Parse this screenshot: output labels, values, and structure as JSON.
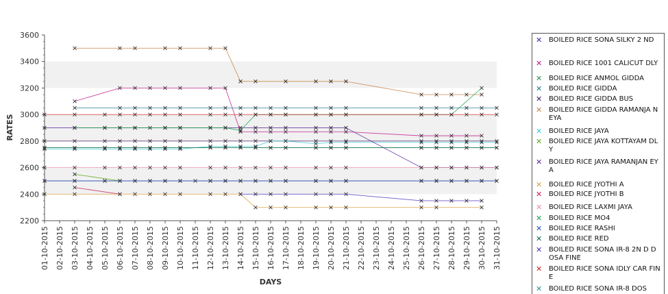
{
  "chart_data": {
    "type": "line",
    "title": "",
    "xlabel": "DAYS",
    "ylabel": "RATES",
    "ylim": [
      2200,
      3600
    ],
    "yticks": [
      2200,
      2400,
      2600,
      2800,
      3000,
      3200,
      3400,
      3600
    ],
    "grid": "alternating horizontal bands",
    "legend_position": "right",
    "categories": [
      "01-10-2015",
      "02-10-2015",
      "03-10-2015",
      "04-10-2015",
      "05-10-2015",
      "06-10-2015",
      "07-10-2015",
      "08-10-2015",
      "09-10-2015",
      "10-10-2015",
      "11-10-2015",
      "12-10-2015",
      "13-10-2015",
      "14-10-2015",
      "15-10-2015",
      "16-10-2015",
      "17-10-2015",
      "18-10-2015",
      "19-10-2015",
      "20-10-2015",
      "21-10-2015",
      "22-10-2015",
      "23-10-2015",
      "24-10-2015",
      "25-10-2015",
      "26-10-2015",
      "27-10-2015",
      "28-10-2015",
      "29-10-2015",
      "30-10-2015",
      "31-10-2015"
    ],
    "series": [
      {
        "name": "BOILED RICE SONA SILKY 2 ND",
        "color": "#2a2fa8",
        "values": [
          2500,
          null,
          2500,
          null,
          2500,
          2500,
          2500,
          2500,
          2500,
          2500,
          2500,
          2500,
          2500,
          2500,
          2500,
          2500,
          2500,
          null,
          2500,
          2500,
          2500,
          null,
          null,
          null,
          null,
          2500,
          2500,
          2500,
          2500,
          2500,
          2500
        ]
      },
      {
        "name": "BOILED RICE 1001 CALICUT DLY",
        "color": "#c0168c",
        "values": [
          null,
          null,
          3100,
          null,
          null,
          3200,
          3200,
          3200,
          3200,
          3200,
          null,
          3200,
          3200,
          2870,
          2870,
          2870,
          2870,
          null,
          2870,
          2870,
          2870,
          null,
          null,
          null,
          null,
          2840,
          2840,
          2840,
          2840,
          2840,
          null
        ]
      },
      {
        "name": "BOILED RICE ANMOL GIDDA",
        "color": "#2e8b57",
        "values": [
          2750,
          null,
          2750,
          null,
          2750,
          2750,
          2750,
          2750,
          2750,
          2750,
          null,
          2750,
          2750,
          2750,
          2750,
          2750,
          2750,
          null,
          2750,
          2750,
          2750,
          null,
          null,
          null,
          null,
          2750,
          2750,
          2750,
          2750,
          2750,
          2750
        ]
      },
      {
        "name": "BOILED RICE GIDDA",
        "color": "#1f7a8c",
        "values": [
          null,
          null,
          3050,
          null,
          null,
          3050,
          3050,
          3050,
          3050,
          3050,
          null,
          3050,
          3050,
          3050,
          3050,
          3050,
          3050,
          null,
          3050,
          3050,
          3050,
          null,
          null,
          null,
          null,
          3050,
          3050,
          3050,
          3050,
          3050,
          3050
        ]
      },
      {
        "name": "BOILED RICE GIDDA BUS",
        "color": "#3d1460",
        "values": [
          2800,
          null,
          2800,
          null,
          2800,
          2800,
          2800,
          2800,
          2800,
          2800,
          null,
          2800,
          2800,
          2800,
          2800,
          2800,
          2800,
          null,
          2800,
          2800,
          2800,
          null,
          null,
          null,
          null,
          2800,
          2800,
          2800,
          2800,
          2800,
          2800
        ]
      },
      {
        "name": "BOILED RICE GIDDA RAMANJANEYA",
        "color": "#c47e3c",
        "values": [
          null,
          null,
          3500,
          null,
          null,
          3500,
          3500,
          null,
          3500,
          3500,
          null,
          3500,
          3500,
          3250,
          3250,
          null,
          3250,
          null,
          3250,
          3250,
          3250,
          null,
          null,
          null,
          null,
          3150,
          3150,
          3150,
          3150,
          3150,
          null
        ]
      },
      {
        "name": "BOILED RICE JAYA",
        "color": "#31c7d6",
        "values": [
          2740,
          null,
          2740,
          null,
          2740,
          2740,
          2740,
          2740,
          2740,
          2740,
          null,
          2760,
          2760,
          2760,
          2760,
          2800,
          2800,
          null,
          2780,
          2790,
          2790,
          null,
          null,
          null,
          null,
          2790,
          2790,
          2790,
          2790,
          2790,
          2790
        ]
      },
      {
        "name": "BOILED RICE JAYA KOTTAYAM DLY",
        "color": "#5ca614",
        "values": [
          null,
          null,
          2550,
          null,
          null,
          2500,
          null,
          null,
          null,
          null,
          null,
          null,
          null,
          null,
          null,
          null,
          null,
          null,
          null,
          null,
          null,
          null,
          null,
          null,
          null,
          null,
          null,
          null,
          null,
          null,
          null
        ]
      },
      {
        "name": "BOILED RICE JAYA RAMANJANEYA",
        "color": "#5b2a9e",
        "values": [
          2900,
          null,
          2900,
          null,
          2900,
          2900,
          2900,
          2900,
          2900,
          2900,
          null,
          2900,
          2900,
          2900,
          2900,
          2900,
          2900,
          null,
          2900,
          2900,
          2900,
          null,
          null,
          null,
          null,
          2600,
          2600,
          2600,
          2600,
          2600,
          2600
        ]
      },
      {
        "name": "BOILED RICE JYOTHI A",
        "color": "#dd9a3a",
        "values": [
          2400,
          null,
          2400,
          null,
          null,
          2400,
          2400,
          2400,
          2400,
          2400,
          null,
          2400,
          2400,
          2400,
          2300,
          2300,
          2300,
          null,
          2300,
          2300,
          2300,
          null,
          null,
          null,
          null,
          2300,
          2300,
          null,
          null,
          2300,
          null
        ]
      },
      {
        "name": "BOILED RICE JYOTHI B",
        "color": "#c21d57",
        "values": [
          null,
          null,
          2450,
          null,
          null,
          2400,
          null,
          null,
          null,
          null,
          null,
          null,
          null,
          null,
          null,
          null,
          null,
          null,
          null,
          null,
          null,
          null,
          null,
          null,
          null,
          null,
          null,
          null,
          null,
          null,
          null
        ]
      },
      {
        "name": "BOILED RICE LAXMI JAYA",
        "color": "#e88aa0",
        "values": [
          2600,
          null,
          2600,
          null,
          2600,
          2600,
          2600,
          2600,
          2600,
          2600,
          null,
          2600,
          2600,
          2600,
          2600,
          2600,
          2600,
          null,
          2600,
          2600,
          2600,
          null,
          null,
          null,
          null,
          2600,
          2600,
          2600,
          2600,
          2600,
          2600
        ]
      },
      {
        "name": "BOILED RICE MO4",
        "color": "#17a34a",
        "values": [
          null,
          null,
          2900,
          null,
          2900,
          2900,
          2900,
          null,
          2900,
          2900,
          null,
          2900,
          2900,
          2880,
          3000,
          3000,
          3000,
          null,
          3000,
          3000,
          3000,
          null,
          null,
          null,
          null,
          3000,
          3000,
          3000,
          null,
          3200,
          null
        ]
      },
      {
        "name": "BOILED RICE RASHI",
        "color": "#1e4fb5",
        "values": [
          2500,
          null,
          2500,
          null,
          2500,
          2500,
          2500,
          2500,
          2500,
          2500,
          null,
          2500,
          2500,
          2500,
          2500,
          2500,
          2500,
          null,
          2500,
          2500,
          2500,
          null,
          null,
          null,
          null,
          2500,
          2500,
          2500,
          2500,
          2500,
          2500
        ]
      },
      {
        "name": "BOILED RICE RED",
        "color": "#0f6b4a",
        "values": [
          2750,
          null,
          2750,
          null,
          2750,
          2750,
          2750,
          2750,
          2750,
          2750,
          null,
          2750,
          2750,
          2750,
          2750,
          2750,
          2750,
          null,
          2750,
          2750,
          2750,
          null,
          null,
          null,
          null,
          2750,
          2750,
          2750,
          2750,
          2750,
          2750
        ]
      },
      {
        "name": "BOILED RICE SONA IR-8 2ND DOSA FINE",
        "color": "#4b2ab8",
        "values": [
          null,
          null,
          null,
          null,
          null,
          null,
          null,
          null,
          null,
          null,
          null,
          null,
          null,
          2400,
          2400,
          2400,
          2400,
          null,
          2400,
          2400,
          2400,
          null,
          null,
          null,
          null,
          2350,
          2350,
          2350,
          2350,
          2350,
          null
        ]
      },
      {
        "name": "BOILED RICE SONA IDLY CAR FINE",
        "color": "#d11f1f",
        "values": [
          3000,
          null,
          3000,
          null,
          3000,
          3000,
          3000,
          3000,
          3000,
          3000,
          null,
          3000,
          3000,
          3000,
          3000,
          3000,
          3000,
          null,
          3000,
          3000,
          3000,
          null,
          null,
          null,
          null,
          3000,
          3000,
          3000,
          3000,
          3000,
          3000
        ]
      },
      {
        "name": "BOILED RICE SONA IR-8 DOS",
        "color": "#2c8f8f",
        "values": [
          null,
          null,
          null,
          null,
          null,
          null,
          null,
          null,
          null,
          null,
          null,
          null,
          null,
          null,
          null,
          null,
          null,
          null,
          null,
          null,
          null,
          null,
          null,
          null,
          null,
          null,
          null,
          null,
          null,
          null,
          null
        ]
      }
    ]
  },
  "legend": {
    "items": [
      {
        "label": "BOILED RICE SONA SILKY 2 ND",
        "color": "#2a2fa8"
      },
      {
        "label": "BOILED RICE 1001 CALICUT DLY",
        "color": "#c0168c"
      },
      {
        "label": "BOILED RICE ANMOL GIDDA",
        "color": "#2e8b57"
      },
      {
        "label": "BOILED RICE GIDDA",
        "color": "#1f7a8c"
      },
      {
        "label": "BOILED RICE GIDDA BUS",
        "color": "#3d1460"
      },
      {
        "label": "BOILED RICE GIDDA RAMANJA NEYA",
        "color": "#c47e3c"
      },
      {
        "label": "BOILED RICE JAYA",
        "color": "#31c7d6"
      },
      {
        "label": "BOILED RICE JAYA KOTTAYAM DLY",
        "color": "#5ca614"
      },
      {
        "label": "BOILED RICE JAYA RAMANJAN EYA",
        "color": "#5b2a9e"
      },
      {
        "label": "BOILED RICE JYOTHI A",
        "color": "#dd9a3a"
      },
      {
        "label": "BOILED RICE JYOTHI B",
        "color": "#c21d57"
      },
      {
        "label": "BOILED RICE LAXMI JAYA",
        "color": "#e88aa0"
      },
      {
        "label": "BOILED RICE MO4",
        "color": "#17a34a"
      },
      {
        "label": "BOILED RICE RASHI",
        "color": "#1e4fb5"
      },
      {
        "label": "BOILED RICE RED",
        "color": "#0f6b4a"
      },
      {
        "label": "BOILED RICE SONA  IR-8 2N D DOSA FINE",
        "color": "#4b2ab8"
      },
      {
        "label": "BOILED RICE SONA IDLY CAR FINE",
        "color": "#d11f1f"
      },
      {
        "label": "BOILED RICE SONA IR-8 DOS",
        "color": "#2c8f8f"
      }
    ]
  }
}
